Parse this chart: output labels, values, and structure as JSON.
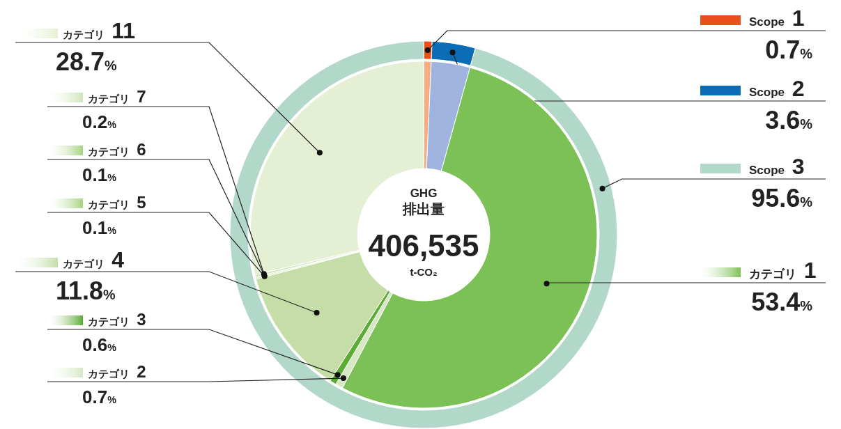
{
  "chart_data": [
    {
      "type": "donut",
      "legend": "right",
      "title": "GHG 排出量",
      "annotations": [
        "406,535",
        "t-CO₂"
      ],
      "categories": [
        "Scope 1",
        "Scope 2",
        "Scope 3"
      ],
      "values": [
        0.7,
        3.6,
        95.6
      ],
      "colors": [
        "#e8501c",
        "#0a6db5",
        "#b2d8c9"
      ],
      "value_labels": [
        "0.7%",
        "3.6%",
        "95.6%"
      ]
    },
    {
      "type": "donut",
      "legend": "left",
      "categories": [
        null,
        null,
        "カテゴリ 1",
        "カテゴリ 2",
        "カテゴリ 3",
        "カテゴリ 4",
        "カテゴリ 5",
        "カテゴリ 6",
        "カテゴリ 7",
        "カテゴリ 11"
      ],
      "values": [
        0.7,
        3.6,
        53.4,
        0.7,
        0.6,
        11.8,
        0.1,
        0.1,
        0.2,
        28.7
      ],
      "colors": [
        "#f5ae84",
        "#9eb3de",
        "#7cc156",
        "#d6e8c4",
        "#5aac35",
        "#c5dea8",
        "#a8d282",
        "#a8d282",
        "#cfe5b8",
        "#e4efd3"
      ],
      "value_labels": [
        null,
        null,
        "53.4%",
        "0.7%",
        "0.6%",
        "11.8%",
        "0.1%",
        "0.1%",
        "0.2%",
        "28.7%"
      ]
    }
  ]
}
